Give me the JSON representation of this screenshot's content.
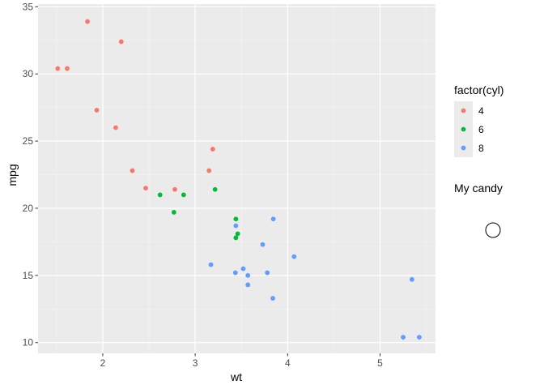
{
  "chart_data": {
    "type": "scatter",
    "xlabel": "wt",
    "ylabel": "mpg",
    "xlim": [
      1.3,
      5.6
    ],
    "ylim": [
      9.2,
      35.2
    ],
    "x_ticks": [
      2,
      3,
      4,
      5
    ],
    "y_ticks": [
      10,
      15,
      20,
      25,
      30,
      35
    ],
    "grid": true,
    "legend": {
      "title": "factor(cyl)",
      "placement": "right"
    },
    "series": [
      {
        "name": "4",
        "color": "#f8766d",
        "points": [
          [
            2.32,
            22.8
          ],
          [
            3.19,
            24.4
          ],
          [
            3.15,
            22.8
          ],
          [
            2.2,
            32.4
          ],
          [
            1.615,
            30.4
          ],
          [
            1.835,
            33.9
          ],
          [
            2.465,
            21.5
          ],
          [
            1.935,
            27.3
          ],
          [
            2.14,
            26.0
          ],
          [
            1.513,
            30.4
          ],
          [
            2.78,
            21.4
          ]
        ]
      },
      {
        "name": "6",
        "color": "#00ba38",
        "points": [
          [
            2.62,
            21.0
          ],
          [
            2.875,
            21.0
          ],
          [
            3.215,
            21.4
          ],
          [
            3.46,
            18.1
          ],
          [
            3.44,
            19.2
          ],
          [
            3.44,
            17.8
          ],
          [
            2.77,
            19.7
          ]
        ]
      },
      {
        "name": "8",
        "color": "#619cff",
        "points": [
          [
            3.44,
            18.7
          ],
          [
            3.57,
            14.3
          ],
          [
            4.07,
            16.4
          ],
          [
            3.73,
            17.3
          ],
          [
            3.78,
            15.2
          ],
          [
            5.25,
            10.4
          ],
          [
            5.424,
            10.4
          ],
          [
            5.345,
            14.7
          ],
          [
            3.52,
            15.5
          ],
          [
            3.435,
            15.2
          ],
          [
            3.84,
            13.3
          ],
          [
            3.845,
            19.2
          ],
          [
            3.17,
            15.8
          ],
          [
            3.57,
            15.0
          ]
        ]
      }
    ]
  },
  "custom_legend": {
    "title": "My candy",
    "symbol": "open-circle"
  }
}
